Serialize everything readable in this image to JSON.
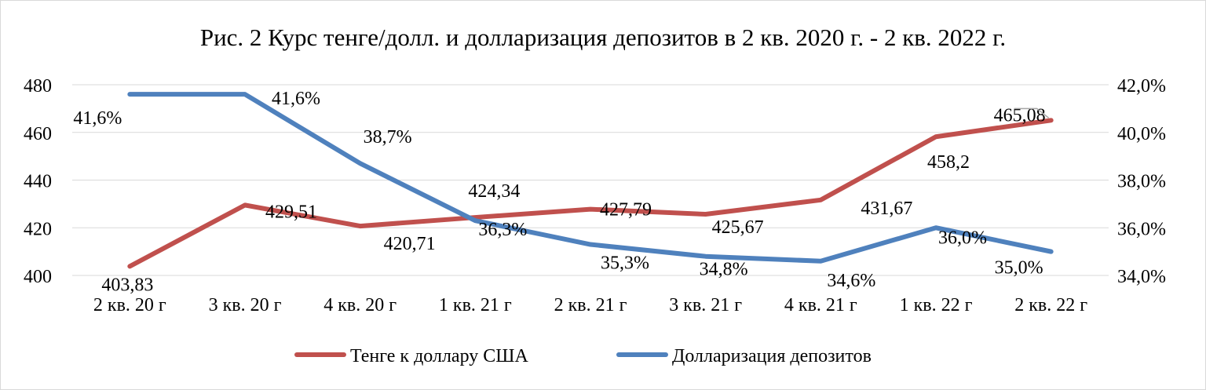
{
  "chart_data": {
    "type": "line",
    "title": "Рис. 2 Курс тенге/долл. и долларизация депозитов в 2 кв. 2020 г. - 2 кв. 2022 г.",
    "categories": [
      "2 кв. 20 г",
      "3 кв. 20 г",
      "4 кв. 20 г",
      "1 кв. 21 г",
      "2 кв. 21 г",
      "3 кв. 21 г",
      "4 кв. 21 г",
      "1 кв. 22 г",
      "2 кв. 22 г"
    ],
    "y_left": {
      "min": 400,
      "max": 480,
      "step": 20,
      "ticks": [
        "400",
        "420",
        "440",
        "460",
        "480"
      ]
    },
    "y_right": {
      "min": 34,
      "max": 42,
      "step": 2,
      "ticks": [
        "34,0%",
        "36,0%",
        "38,0%",
        "40,0%",
        "42,0%"
      ]
    },
    "grid": true,
    "legend_position": "bottom",
    "series": [
      {
        "name": "Тенге к доллару США",
        "axis": "left",
        "color": "#c0504d",
        "values": [
          403.83,
          429.51,
          420.71,
          424.34,
          427.79,
          425.67,
          431.67,
          458.2,
          465.08
        ],
        "labels": [
          "403,83",
          "429,51",
          "420,71",
          "424,34",
          "427,79",
          "425,67",
          "431,67",
          "458,2",
          "465,08"
        ]
      },
      {
        "name": "Долларизация депозитов",
        "axis": "right",
        "color": "#4f81bd",
        "values": [
          41.6,
          41.6,
          38.7,
          36.3,
          35.3,
          34.8,
          34.6,
          36.0,
          35.0
        ],
        "labels": [
          "41,6%",
          "41,6%",
          "38,7%",
          "36,3%",
          "35,3%",
          "34,8%",
          "34,6%",
          "36,0%",
          "35,0%"
        ]
      }
    ]
  }
}
